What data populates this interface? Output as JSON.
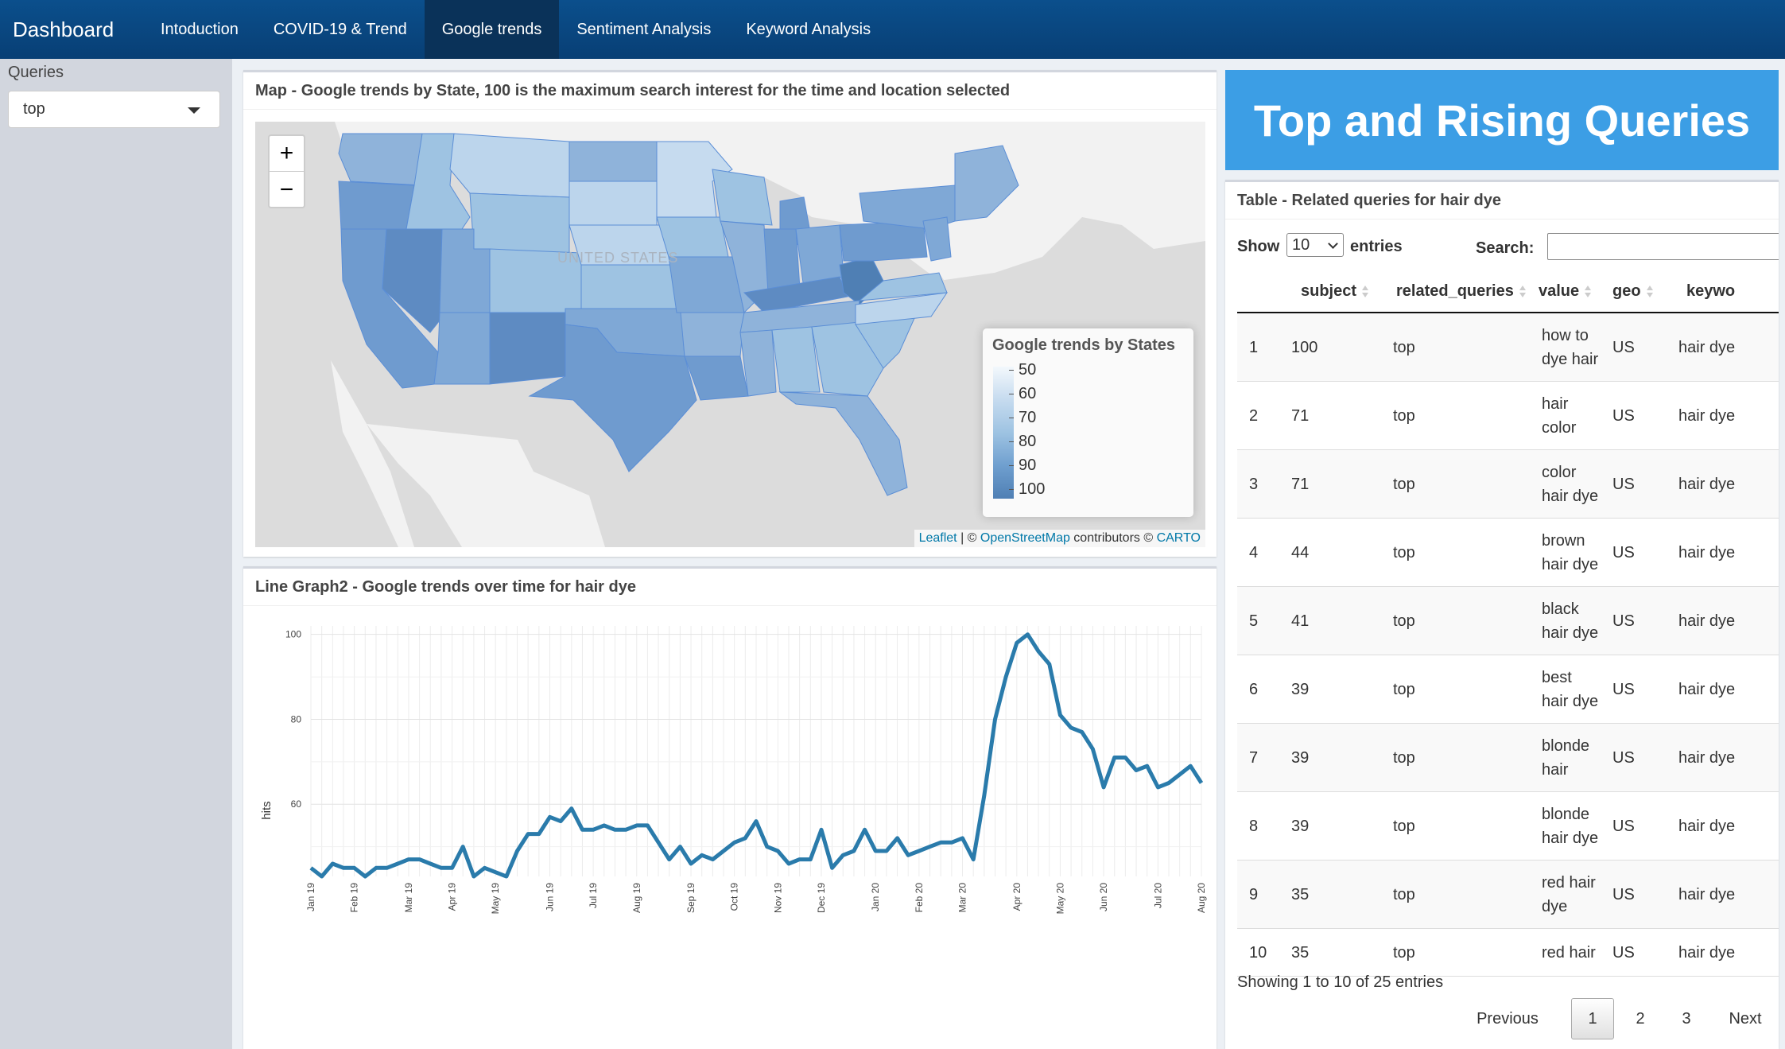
{
  "navbar": {
    "brand": "Dashboard",
    "tabs": [
      "Intoduction",
      "COVID-19 & Trend",
      "Google trends",
      "Sentiment Analysis",
      "Keyword Analysis"
    ],
    "active_tab": "Google trends"
  },
  "sidebar": {
    "label": "Queries",
    "selected": "top"
  },
  "map": {
    "title": "Map - Google trends by State, 100 is the maximum search interest for the time and location selected",
    "zoom_in": "+",
    "zoom_out": "−",
    "country_label": "UNITED STATES",
    "legend_title": "Google trends by States",
    "legend_ticks": [
      "50",
      "60",
      "70",
      "80",
      "90",
      "100"
    ],
    "attribution": {
      "leaflet": "Leaflet",
      "sep": " | © ",
      "osm": "OpenStreetMap",
      "mid": " contributors © ",
      "carto": "CARTO"
    },
    "colors": {
      "water": "#dcdcdc",
      "land": "#f2f2f2",
      "low": "#c6dbef",
      "high": "#4f7fb4"
    }
  },
  "line_graph": {
    "title": "Line Graph2 - Google trends over time for hair dye"
  },
  "chart_data": {
    "type": "line",
    "title": "",
    "xlabel": "",
    "ylabel": "hits",
    "ylim": [
      43,
      102
    ],
    "yticks": [
      60,
      80,
      100
    ],
    "grid": true,
    "color": "#2a7bab",
    "tick_labels": [
      "Jan 19",
      "Feb 19",
      "Mar 19",
      "Apr 19",
      "May 19",
      "Jun 19",
      "Jul 19",
      "Aug 19",
      "Sep 19",
      "Oct 19",
      "Nov 19",
      "Dec 19",
      "Jan 20",
      "Feb 20",
      "Mar 20",
      "Apr 20",
      "May 20",
      "Jun 20",
      "Jul 20",
      "Aug 20"
    ],
    "series": [
      {
        "values": [
          45,
          43,
          46,
          45,
          45,
          43,
          45,
          45,
          46,
          47,
          47,
          46,
          45,
          45,
          50,
          43,
          45,
          44,
          43,
          49,
          53,
          53,
          57,
          56,
          59,
          54,
          54,
          55,
          54,
          54,
          55,
          55,
          51,
          47,
          50,
          46,
          48,
          47,
          49,
          51,
          52,
          56,
          50,
          49,
          46,
          47,
          47,
          54,
          45,
          48,
          49,
          54,
          49,
          49,
          52,
          48,
          49,
          50,
          51,
          51,
          52,
          47,
          62,
          80,
          90,
          98,
          100,
          96,
          93,
          81,
          78,
          77,
          73,
          64,
          71,
          71,
          68,
          69,
          64,
          65,
          67,
          69,
          65
        ]
      }
    ]
  },
  "right": {
    "banner": "Top and Rising Queries",
    "table_title": "Table - Related queries for hair dye",
    "show": "Show",
    "entries_value": "10",
    "entries": "entries",
    "search": "Search:",
    "columns": [
      "subject",
      "related_queries",
      "value",
      "geo",
      "keywo"
    ],
    "rows": [
      {
        "idx": "1",
        "subject": "100",
        "rq": "top",
        "value": [
          "how to",
          "dye hair"
        ],
        "geo": "US",
        "keyword": "hair dye"
      },
      {
        "idx": "2",
        "subject": "71",
        "rq": "top",
        "value": [
          "hair",
          "color"
        ],
        "geo": "US",
        "keyword": "hair dye"
      },
      {
        "idx": "3",
        "subject": "71",
        "rq": "top",
        "value": [
          "color",
          "hair dye"
        ],
        "geo": "US",
        "keyword": "hair dye"
      },
      {
        "idx": "4",
        "subject": "44",
        "rq": "top",
        "value": [
          "brown",
          "hair dye"
        ],
        "geo": "US",
        "keyword": "hair dye"
      },
      {
        "idx": "5",
        "subject": "41",
        "rq": "top",
        "value": [
          "black",
          "hair dye"
        ],
        "geo": "US",
        "keyword": "hair dye"
      },
      {
        "idx": "6",
        "subject": "39",
        "rq": "top",
        "value": [
          "best",
          "hair dye"
        ],
        "geo": "US",
        "keyword": "hair dye"
      },
      {
        "idx": "7",
        "subject": "39",
        "rq": "top",
        "value": [
          "blonde",
          "hair"
        ],
        "geo": "US",
        "keyword": "hair dye"
      },
      {
        "idx": "8",
        "subject": "39",
        "rq": "top",
        "value": [
          "blonde",
          "hair dye"
        ],
        "geo": "US",
        "keyword": "hair dye"
      },
      {
        "idx": "9",
        "subject": "35",
        "rq": "top",
        "value": [
          "red hair",
          "dye"
        ],
        "geo": "US",
        "keyword": "hair dye"
      },
      {
        "idx": "10",
        "subject": "35",
        "rq": "top",
        "value": [
          "red hair",
          ""
        ],
        "geo": "US",
        "keyword": "hair dye"
      }
    ],
    "info": "Showing 1 to 10 of 25 entries",
    "pager": {
      "previous": "Previous",
      "pages": [
        "1",
        "2",
        "3"
      ],
      "next": "Next"
    }
  }
}
